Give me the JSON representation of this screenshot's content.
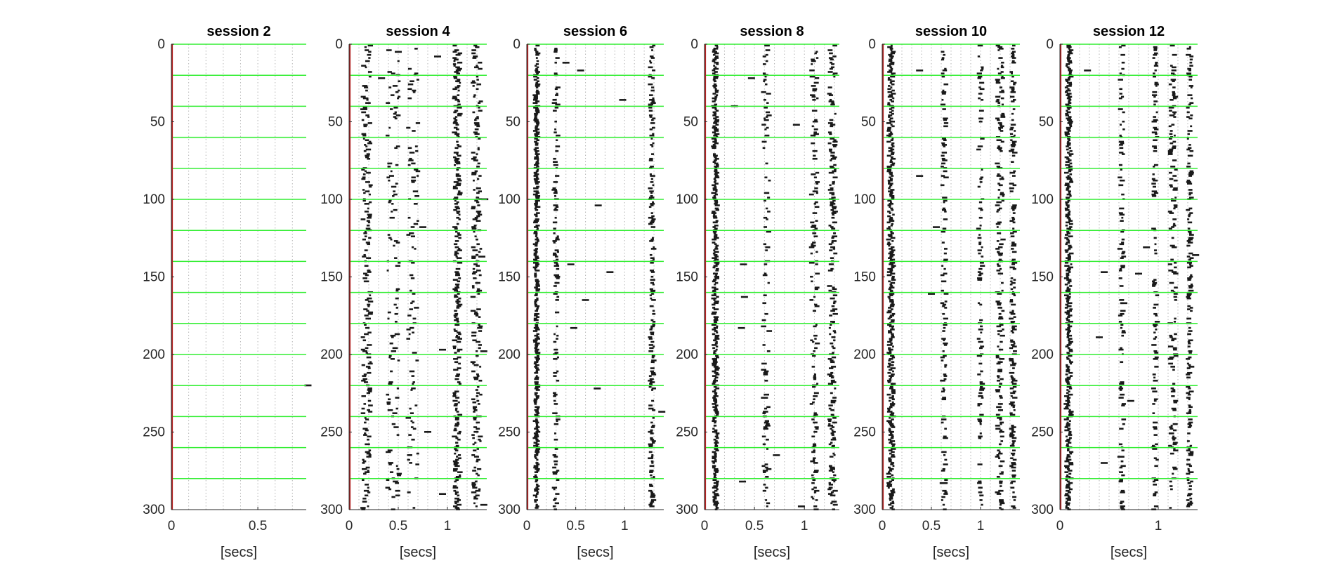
{
  "colors": {
    "background": "#ffffff",
    "axis": "#262626",
    "grid": "#b5b5b5",
    "raster": "#1a1a1a",
    "block_separator": "#33ee33",
    "onset_marker": "#b22222"
  },
  "chart_data": [
    {
      "type": "raster",
      "title": "session 2",
      "xlabel": "[secs]",
      "xlim": [
        0,
        0.78
      ],
      "ylim": [
        0,
        300
      ],
      "y_reversed": true,
      "xticks": [
        0,
        0.5
      ],
      "xtick_labels": [
        "0",
        "0.5"
      ],
      "yticks": [
        0,
        50,
        100,
        150,
        200,
        250,
        300
      ],
      "ytick_labels": [
        "0",
        "50",
        "100",
        "150",
        "200",
        "250",
        "300"
      ],
      "vertical_grid": true,
      "block_lines_y": [
        0,
        20,
        40,
        60,
        80,
        100,
        120,
        140,
        160,
        180,
        200,
        220,
        240,
        260,
        280
      ],
      "onset_x": 0,
      "columns": [],
      "sparse_events": [
        {
          "x": 0.79,
          "y": 220
        }
      ]
    },
    {
      "type": "raster",
      "title": "session 4",
      "xlabel": "[secs]",
      "xlim": [
        0,
        1.4
      ],
      "ylim": [
        0,
        300
      ],
      "y_reversed": true,
      "xticks": [
        0,
        0.5,
        1
      ],
      "xtick_labels": [
        "0",
        "0.5",
        "1"
      ],
      "yticks": [
        0,
        50,
        100,
        150,
        200,
        250,
        300
      ],
      "ytick_labels": [
        "0",
        "50",
        "100",
        "150",
        "200",
        "250",
        "300"
      ],
      "vertical_grid": true,
      "block_lines_y": [
        0,
        20,
        40,
        60,
        80,
        100,
        120,
        140,
        160,
        180,
        200,
        220,
        240,
        260,
        280
      ],
      "onset_x": 0,
      "columns": [
        {
          "center": 0.18,
          "jitter": 0.04,
          "density": 0.55
        },
        {
          "center": 0.45,
          "jitter": 0.06,
          "density": 0.35
        },
        {
          "center": 0.65,
          "jitter": 0.05,
          "density": 0.28
        },
        {
          "center": 1.1,
          "jitter": 0.03,
          "density": 0.75
        },
        {
          "center": 1.3,
          "jitter": 0.04,
          "density": 0.6
        }
      ],
      "sparse_events": [
        {
          "x": 0.5,
          "y": 5
        },
        {
          "x": 0.33,
          "y": 22
        },
        {
          "x": 0.9,
          "y": 8
        },
        {
          "x": 0.15,
          "y": 42
        },
        {
          "x": 0.75,
          "y": 118
        },
        {
          "x": 0.95,
          "y": 197
        },
        {
          "x": 1.38,
          "y": 100
        },
        {
          "x": 1.35,
          "y": 137
        },
        {
          "x": 0.95,
          "y": 290
        },
        {
          "x": 0.8,
          "y": 250
        },
        {
          "x": 1.37,
          "y": 297
        },
        {
          "x": 1.37,
          "y": 198
        }
      ]
    },
    {
      "type": "raster",
      "title": "session 6",
      "xlabel": "[secs]",
      "xlim": [
        0,
        1.4
      ],
      "ylim": [
        0,
        300
      ],
      "y_reversed": true,
      "xticks": [
        0,
        0.5,
        1
      ],
      "xtick_labels": [
        "0",
        "0.5",
        "1"
      ],
      "yticks": [
        0,
        50,
        100,
        150,
        200,
        250,
        300
      ],
      "ytick_labels": [
        "0",
        "50",
        "100",
        "150",
        "200",
        "250",
        "300"
      ],
      "vertical_grid": true,
      "block_lines_y": [
        0,
        20,
        40,
        60,
        80,
        100,
        120,
        140,
        160,
        180,
        200,
        220,
        240,
        260,
        280
      ],
      "onset_x": 0,
      "columns": [
        {
          "center": 0.1,
          "jitter": 0.015,
          "density": 0.92
        },
        {
          "center": 0.3,
          "jitter": 0.02,
          "density": 0.38
        },
        {
          "center": 1.28,
          "jitter": 0.02,
          "density": 0.55
        }
      ],
      "sparse_events": [
        {
          "x": 0.55,
          "y": 17
        },
        {
          "x": 0.4,
          "y": 12
        },
        {
          "x": 0.98,
          "y": 36
        },
        {
          "x": 0.73,
          "y": 104
        },
        {
          "x": 0.6,
          "y": 165
        },
        {
          "x": 0.72,
          "y": 222
        },
        {
          "x": 0.48,
          "y": 183
        },
        {
          "x": 1.38,
          "y": 237
        },
        {
          "x": 0.85,
          "y": 147
        },
        {
          "x": 0.45,
          "y": 142
        }
      ]
    },
    {
      "type": "raster",
      "title": "session 8",
      "xlabel": "[secs]",
      "xlim": [
        0,
        1.35
      ],
      "ylim": [
        0,
        300
      ],
      "y_reversed": true,
      "xticks": [
        0,
        0.5,
        1
      ],
      "xtick_labels": [
        "0",
        "0.5",
        "1"
      ],
      "yticks": [
        0,
        50,
        100,
        150,
        200,
        250,
        300
      ],
      "ytick_labels": [
        "0",
        "50",
        "100",
        "150",
        "200",
        "250",
        "300"
      ],
      "vertical_grid": true,
      "block_lines_y": [
        0,
        20,
        40,
        60,
        80,
        100,
        120,
        140,
        160,
        180,
        200,
        220,
        240,
        260,
        280
      ],
      "onset_x": 0,
      "columns": [
        {
          "center": 0.11,
          "jitter": 0.02,
          "density": 0.95
        },
        {
          "center": 0.62,
          "jitter": 0.03,
          "density": 0.33
        },
        {
          "center": 1.1,
          "jitter": 0.03,
          "density": 0.45
        },
        {
          "center": 1.28,
          "jitter": 0.03,
          "density": 0.6
        }
      ],
      "sparse_events": [
        {
          "x": 0.47,
          "y": 22
        },
        {
          "x": 0.3,
          "y": 40
        },
        {
          "x": 0.39,
          "y": 142
        },
        {
          "x": 0.4,
          "y": 163
        },
        {
          "x": 0.37,
          "y": 183
        },
        {
          "x": 0.6,
          "y": 228
        },
        {
          "x": 0.72,
          "y": 265
        },
        {
          "x": 0.38,
          "y": 282
        },
        {
          "x": 0.97,
          "y": 298
        },
        {
          "x": 0.92,
          "y": 52
        }
      ]
    },
    {
      "type": "raster",
      "title": "session 10",
      "xlabel": "[secs]",
      "xlim": [
        0,
        1.4
      ],
      "ylim": [
        0,
        300
      ],
      "y_reversed": true,
      "xticks": [
        0,
        0.5,
        1
      ],
      "xtick_labels": [
        "0",
        "0.5",
        "1"
      ],
      "yticks": [
        0,
        50,
        100,
        150,
        200,
        250,
        300
      ],
      "ytick_labels": [
        "0",
        "50",
        "100",
        "150",
        "200",
        "250",
        "300"
      ],
      "vertical_grid": true,
      "block_lines_y": [
        0,
        20,
        40,
        60,
        80,
        100,
        120,
        140,
        160,
        180,
        200,
        220,
        240,
        260,
        280
      ],
      "onset_x": 0,
      "columns": [
        {
          "center": 0.09,
          "jitter": 0.025,
          "density": 1.0
        },
        {
          "center": 0.63,
          "jitter": 0.02,
          "density": 0.35
        },
        {
          "center": 1.0,
          "jitter": 0.02,
          "density": 0.35
        },
        {
          "center": 1.2,
          "jitter": 0.03,
          "density": 0.45
        },
        {
          "center": 1.33,
          "jitter": 0.02,
          "density": 0.55
        }
      ],
      "sparse_events": [
        {
          "x": 0.38,
          "y": 17
        },
        {
          "x": 0.38,
          "y": 85
        },
        {
          "x": 0.5,
          "y": 161
        },
        {
          "x": 0.62,
          "y": 283
        },
        {
          "x": 0.55,
          "y": 118
        }
      ]
    },
    {
      "type": "raster",
      "title": "session 12",
      "xlabel": "[secs]",
      "xlim": [
        0,
        1.4
      ],
      "ylim": [
        0,
        300
      ],
      "y_reversed": true,
      "xticks": [
        0,
        1
      ],
      "xtick_labels": [
        "0",
        "1"
      ],
      "yticks": [
        0,
        50,
        100,
        150,
        200,
        250,
        300
      ],
      "ytick_labels": [
        "0",
        "50",
        "100",
        "150",
        "200",
        "250",
        "300"
      ],
      "vertical_grid": true,
      "block_lines_y": [
        0,
        20,
        40,
        60,
        80,
        100,
        120,
        140,
        160,
        180,
        200,
        220,
        240,
        260,
        280
      ],
      "onset_x": 0,
      "columns": [
        {
          "center": 0.09,
          "jitter": 0.025,
          "density": 1.0
        },
        {
          "center": 0.63,
          "jitter": 0.02,
          "density": 0.32
        },
        {
          "center": 0.97,
          "jitter": 0.02,
          "density": 0.35
        },
        {
          "center": 1.15,
          "jitter": 0.03,
          "density": 0.45
        },
        {
          "center": 1.32,
          "jitter": 0.02,
          "density": 0.5
        }
      ],
      "sparse_events": [
        {
          "x": 0.28,
          "y": 17
        },
        {
          "x": 0.45,
          "y": 147
        },
        {
          "x": 0.65,
          "y": 167
        },
        {
          "x": 0.8,
          "y": 148
        },
        {
          "x": 0.4,
          "y": 189
        },
        {
          "x": 0.72,
          "y": 230
        },
        {
          "x": 0.45,
          "y": 270
        },
        {
          "x": 1.38,
          "y": 136
        },
        {
          "x": 0.62,
          "y": 266
        },
        {
          "x": 0.88,
          "y": 131
        }
      ]
    }
  ]
}
